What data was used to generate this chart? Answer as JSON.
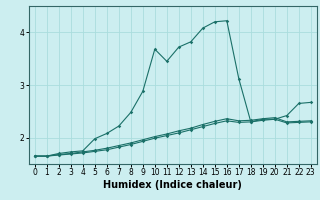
{
  "title": "",
  "xlabel": "Humidex (Indice chaleur)",
  "xlim": [
    -0.5,
    23.5
  ],
  "ylim": [
    1.5,
    4.5
  ],
  "xticks": [
    0,
    1,
    2,
    3,
    4,
    5,
    6,
    7,
    8,
    9,
    10,
    11,
    12,
    13,
    14,
    15,
    16,
    17,
    18,
    19,
    20,
    21,
    22,
    23
  ],
  "yticks": [
    2,
    3,
    4
  ],
  "bg_color": "#cceef0",
  "grid_color": "#aadddd",
  "line_color": "#1a7068",
  "line1_x": [
    0,
    1,
    2,
    3,
    4,
    5,
    6,
    7,
    8,
    9,
    10,
    11,
    12,
    13,
    14,
    15,
    16,
    17,
    18,
    19,
    20,
    21,
    22,
    23
  ],
  "line1_y": [
    1.65,
    1.65,
    1.7,
    1.73,
    1.75,
    1.98,
    2.08,
    2.22,
    2.48,
    2.88,
    3.68,
    3.45,
    3.72,
    3.82,
    4.08,
    4.2,
    4.22,
    3.12,
    2.3,
    2.35,
    2.35,
    2.42,
    2.65,
    2.67
  ],
  "line2_x": [
    0,
    1,
    2,
    3,
    4,
    5,
    6,
    7,
    8,
    9,
    10,
    11,
    12,
    13,
    14,
    15,
    16,
    17,
    18,
    19,
    20,
    21,
    22,
    23
  ],
  "line2_y": [
    1.65,
    1.65,
    1.68,
    1.7,
    1.73,
    1.76,
    1.8,
    1.85,
    1.9,
    1.96,
    2.02,
    2.07,
    2.13,
    2.18,
    2.25,
    2.31,
    2.36,
    2.32,
    2.33,
    2.36,
    2.38,
    2.3,
    2.31,
    2.32
  ],
  "line3_x": [
    0,
    1,
    2,
    3,
    4,
    5,
    6,
    7,
    8,
    9,
    10,
    11,
    12,
    13,
    14,
    15,
    16,
    17,
    18,
    19,
    20,
    21,
    22,
    23
  ],
  "line3_y": [
    1.65,
    1.65,
    1.67,
    1.69,
    1.71,
    1.74,
    1.77,
    1.82,
    1.87,
    1.93,
    1.99,
    2.04,
    2.09,
    2.15,
    2.21,
    2.27,
    2.32,
    2.29,
    2.3,
    2.33,
    2.35,
    2.28,
    2.29,
    2.3
  ],
  "tick_fontsize": 5.5,
  "xlabel_fontsize": 7,
  "marker_size": 1.8,
  "line_width": 0.8
}
